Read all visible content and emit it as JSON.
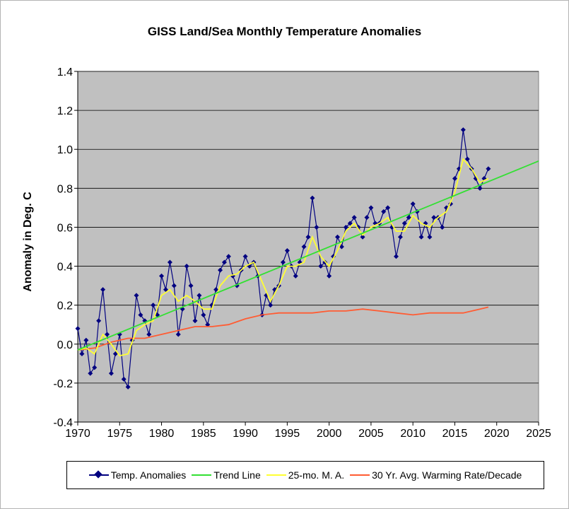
{
  "chart_data": {
    "type": "line",
    "title": "GISS Land/Sea Monthly Temperature Anomalies",
    "ylabel": "Anomaly in Deg. C",
    "xlabel": "",
    "xlim": [
      1970,
      2025
    ],
    "ylim": [
      -0.4,
      1.4
    ],
    "x_ticks": [
      "1970",
      "1975",
      "1980",
      "1985",
      "1990",
      "1995",
      "2000",
      "2005",
      "2010",
      "2015",
      "2020",
      "2025"
    ],
    "y_ticks": [
      "-0.4",
      "-0.2",
      "0.0",
      "0.2",
      "0.4",
      "0.6",
      "0.8",
      "1.0",
      "1.2",
      "1.4"
    ],
    "grid": "horizontal",
    "legend_position": "bottom",
    "colors": {
      "plot_background": "#c0c0c0",
      "anomalies": "#000080",
      "trend": "#33e033",
      "moving_average": "#ffff33",
      "warming_rate": "#ff5c33"
    },
    "series": [
      {
        "name": "Temp. Anomalies",
        "marker": "diamond",
        "x": [
          1970.0,
          1970.5,
          1971.0,
          1971.5,
          1972.0,
          1972.5,
          1973.0,
          1973.5,
          1974.0,
          1974.5,
          1975.0,
          1975.5,
          1976.0,
          1976.5,
          1977.0,
          1977.5,
          1978.0,
          1978.5,
          1979.0,
          1979.5,
          1980.0,
          1980.5,
          1981.0,
          1981.5,
          1982.0,
          1982.5,
          1983.0,
          1983.5,
          1984.0,
          1984.5,
          1985.0,
          1985.5,
          1986.0,
          1986.5,
          1987.0,
          1987.5,
          1988.0,
          1988.5,
          1989.0,
          1989.5,
          1990.0,
          1990.5,
          1991.0,
          1991.5,
          1992.0,
          1992.5,
          1993.0,
          1993.5,
          1994.0,
          1994.5,
          1995.0,
          1995.5,
          1996.0,
          1996.5,
          1997.0,
          1997.5,
          1998.0,
          1998.5,
          1999.0,
          1999.5,
          2000.0,
          2000.5,
          2001.0,
          2001.5,
          2002.0,
          2002.5,
          2003.0,
          2003.5,
          2004.0,
          2004.5,
          2005.0,
          2005.5,
          2006.0,
          2006.5,
          2007.0,
          2007.5,
          2008.0,
          2008.5,
          2009.0,
          2009.5,
          2010.0,
          2010.5,
          2011.0,
          2011.5,
          2012.0,
          2012.5,
          2013.0,
          2013.5,
          2014.0,
          2014.5,
          2015.0,
          2015.5,
          2016.0,
          2016.5,
          2017.0,
          2017.5,
          2018.0,
          2018.5,
          2019.0
        ],
        "y": [
          0.08,
          -0.05,
          0.02,
          -0.15,
          -0.12,
          0.12,
          0.28,
          0.05,
          -0.15,
          -0.05,
          0.05,
          -0.18,
          -0.22,
          0.02,
          0.25,
          0.15,
          0.12,
          0.05,
          0.2,
          0.15,
          0.35,
          0.28,
          0.42,
          0.3,
          0.05,
          0.18,
          0.4,
          0.3,
          0.12,
          0.25,
          0.15,
          0.1,
          0.2,
          0.28,
          0.38,
          0.42,
          0.45,
          0.35,
          0.3,
          0.38,
          0.45,
          0.4,
          0.42,
          0.35,
          0.15,
          0.25,
          0.2,
          0.28,
          0.3,
          0.42,
          0.48,
          0.4,
          0.35,
          0.42,
          0.5,
          0.55,
          0.75,
          0.6,
          0.4,
          0.42,
          0.35,
          0.45,
          0.55,
          0.5,
          0.6,
          0.62,
          0.65,
          0.6,
          0.55,
          0.65,
          0.7,
          0.62,
          0.62,
          0.68,
          0.7,
          0.6,
          0.45,
          0.55,
          0.62,
          0.65,
          0.72,
          0.68,
          0.55,
          0.62,
          0.55,
          0.65,
          0.65,
          0.6,
          0.7,
          0.72,
          0.85,
          0.9,
          1.1,
          0.95,
          0.9,
          0.85,
          0.8,
          0.85,
          0.9
        ]
      },
      {
        "name": "Trend Line",
        "x": [
          1970,
          2025
        ],
        "y": [
          -0.03,
          0.94
        ]
      },
      {
        "name": "25-mo. M. A.",
        "x": [
          1970.0,
          1971.0,
          1972.0,
          1973.0,
          1974.0,
          1975.0,
          1976.0,
          1977.0,
          1978.0,
          1979.0,
          1980.0,
          1981.0,
          1982.0,
          1983.0,
          1984.0,
          1985.0,
          1986.0,
          1987.0,
          1988.0,
          1989.0,
          1990.0,
          1991.0,
          1992.0,
          1993.0,
          1994.0,
          1995.0,
          1996.0,
          1997.0,
          1998.0,
          1999.0,
          2000.0,
          2001.0,
          2002.0,
          2003.0,
          2004.0,
          2005.0,
          2006.0,
          2007.0,
          2008.0,
          2009.0,
          2010.0,
          2011.0,
          2012.0,
          2013.0,
          2014.0,
          2015.0,
          2016.0,
          2017.0,
          2018.0,
          2019.0
        ],
        "y": [
          -0.03,
          -0.02,
          -0.05,
          0.05,
          0.0,
          -0.06,
          -0.05,
          0.07,
          0.1,
          0.12,
          0.25,
          0.28,
          0.22,
          0.25,
          0.22,
          0.18,
          0.18,
          0.3,
          0.35,
          0.36,
          0.4,
          0.42,
          0.32,
          0.22,
          0.3,
          0.4,
          0.4,
          0.42,
          0.55,
          0.45,
          0.4,
          0.48,
          0.58,
          0.62,
          0.56,
          0.6,
          0.62,
          0.65,
          0.58,
          0.58,
          0.66,
          0.62,
          0.6,
          0.65,
          0.68,
          0.78,
          0.95,
          0.9,
          0.83,
          0.85
        ]
      },
      {
        "name": "30 Yr. Avg. Warming Rate/Decade",
        "x": [
          1970,
          1972,
          1974,
          1976,
          1978,
          1980,
          1982,
          1984,
          1986,
          1988,
          1990,
          1992,
          1994,
          1996,
          1998,
          2000,
          2002,
          2004,
          2006,
          2008,
          2010,
          2012,
          2014,
          2016,
          2018,
          2019
        ],
        "y": [
          -0.03,
          -0.02,
          0.01,
          0.03,
          0.03,
          0.05,
          0.07,
          0.09,
          0.09,
          0.1,
          0.13,
          0.15,
          0.16,
          0.16,
          0.16,
          0.17,
          0.17,
          0.18,
          0.17,
          0.16,
          0.15,
          0.16,
          0.16,
          0.16,
          0.18,
          0.19
        ]
      }
    ]
  }
}
